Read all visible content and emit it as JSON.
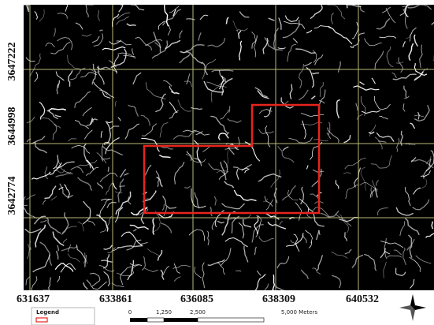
{
  "map": {
    "y_labels": [
      3647222,
      3644998,
      3642774
    ],
    "x_labels": [
      631637,
      633861,
      636085,
      638309,
      640532
    ],
    "legend": {
      "title": "Legend"
    },
    "scale_bar": {
      "labels": [
        "0",
        "1,250",
        "2,500",
        "5,000 Meters"
      ]
    }
  }
}
